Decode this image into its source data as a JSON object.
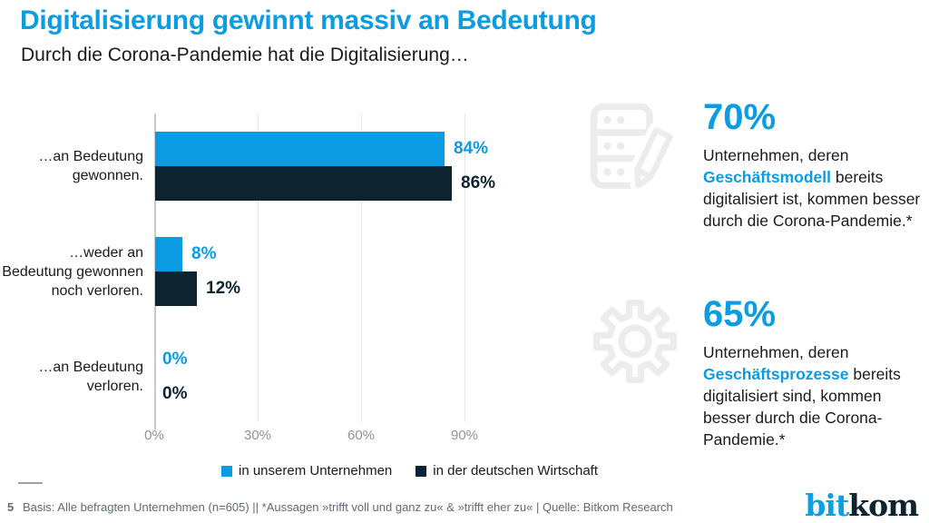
{
  "header": {
    "title": "Digitalisierung gewinnt massiv an Bedeutung",
    "subtitle": "Durch die Corona-Pandemie hat die Digitalisierung…"
  },
  "chart_data": {
    "type": "bar",
    "orientation": "horizontal",
    "title": "",
    "xlabel": "",
    "ylabel": "",
    "categories": [
      "…an Bedeutung gewonnen.",
      "…weder an Bedeutung gewonnen noch verloren.",
      "…an Bedeutung verloren."
    ],
    "series": [
      {
        "name": "in unserem Unternehmen",
        "color": "#0a9be3",
        "values": [
          84,
          8,
          0
        ]
      },
      {
        "name": "in der deutschen Wirtschaft",
        "color": "#0d2430",
        "values": [
          86,
          12,
          0
        ]
      }
    ],
    "value_suffix": "%",
    "x_ticks": [
      "0%",
      "30%",
      "60%",
      "90%"
    ],
    "xlim": [
      0,
      90
    ],
    "grid": true,
    "legend_position": "bottom"
  },
  "stats": [
    {
      "value": "70%",
      "icon": "server-pencil-icon",
      "prefix": "Unternehmen, deren ",
      "keyword": "Geschäftsmodell",
      "suffix": " bereits digitalisiert ist, kommen besser durch die Corona-Pandemie.*"
    },
    {
      "value": "65%",
      "icon": "gear-icon",
      "prefix": "Unternehmen, deren ",
      "keyword": "Geschäftsprozesse",
      "suffix": " bereits digitalisiert sind, kommen besser durch die Corona-Pandemie.*"
    }
  ],
  "footer": {
    "page_number": "5",
    "note": "Basis: Alle befragten Unternehmen (n=605) || *Aussagen »trifft voll und ganz zu« & »trifft eher zu« | Quelle: Bitkom Research",
    "logo_part1": "bit",
    "logo_part2": "kom"
  },
  "colors": {
    "accent": "#0a9be3",
    "dark": "#0d2430",
    "axis_text": "#8a939b",
    "gridline": "#e4e6e8",
    "icon": "#ececec",
    "footer_text": "#5f6b76"
  }
}
